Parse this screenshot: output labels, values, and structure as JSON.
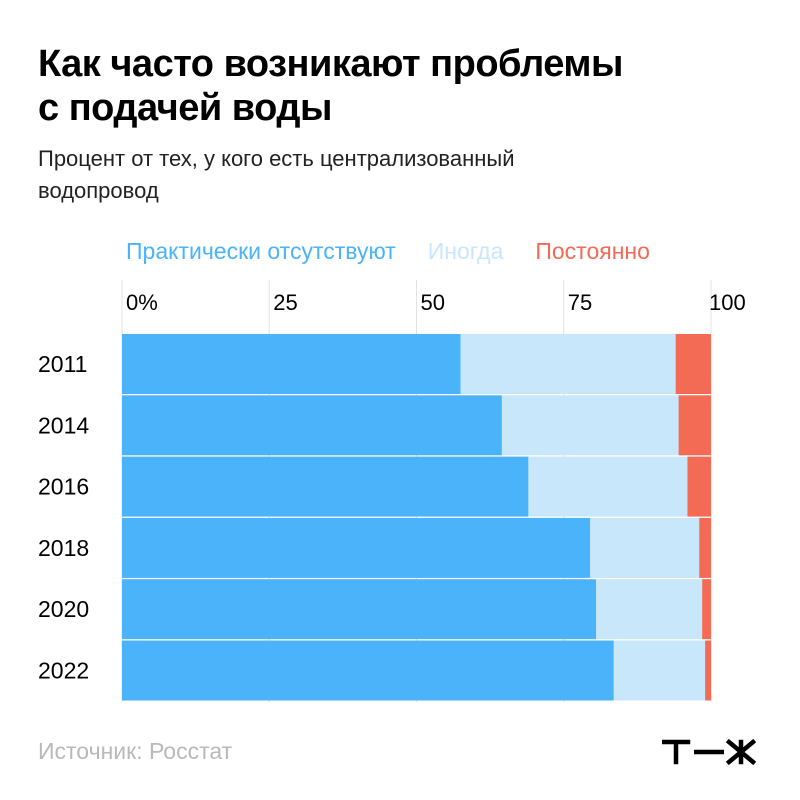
{
  "header": {
    "title_line1": "Как часто возникают проблемы",
    "title_line2": "с подачей воды",
    "subtitle_line1": "Процент от тех, у кого есть централизованный",
    "subtitle_line2": "водопровод"
  },
  "footer": {
    "source": "Источник: Росстат",
    "logo": "т—ж"
  },
  "chart_data": {
    "type": "bar",
    "orientation": "horizontal",
    "stacked": true,
    "categories": [
      "2011",
      "2014",
      "2016",
      "2018",
      "2020",
      "2022"
    ],
    "series": [
      {
        "name": "Практически отсутствуют",
        "color": "#4ab3fa",
        "values": [
          57.5,
          64.5,
          69,
          79.5,
          80.5,
          83.5
        ]
      },
      {
        "name": "Иногда",
        "color": "#c8e7fb",
        "values": [
          36.5,
          30,
          27,
          18.5,
          18,
          15.5
        ]
      },
      {
        "name": "Постоянно",
        "color": "#f36a55",
        "values": [
          6,
          5.5,
          4,
          2,
          1.5,
          1
        ]
      }
    ],
    "xlim": [
      0,
      100
    ],
    "xticks": [
      {
        "value": 0,
        "label": "0%"
      },
      {
        "value": 25,
        "label": "25"
      },
      {
        "value": 50,
        "label": "50"
      },
      {
        "value": 75,
        "label": "75"
      },
      {
        "value": 100,
        "label": "100"
      }
    ],
    "grid": true,
    "legend_position": "top"
  }
}
